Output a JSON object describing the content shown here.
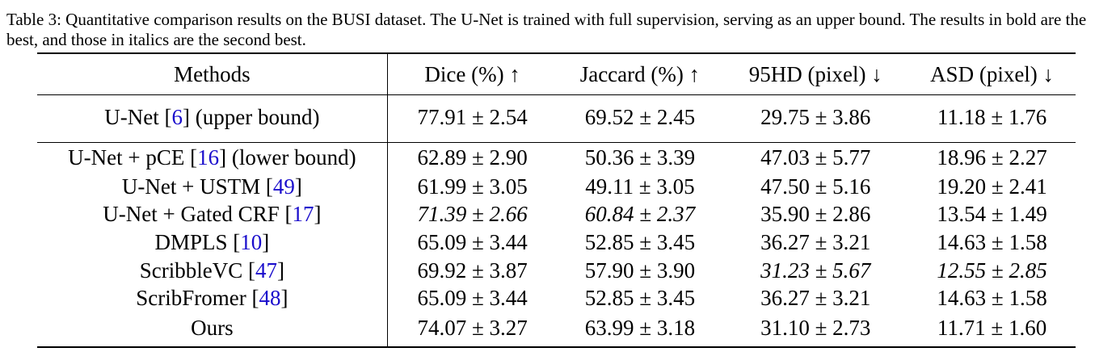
{
  "caption": "Table 3: Quantitative comparison results on the BUSI dataset. The U-Net is trained with full supervision, serving as an upper bound. The results in bold are the best, and those in italics are the second best.",
  "headers": {
    "methods": "Methods",
    "dice": "Dice (%) ↑",
    "jaccard": "Jaccard (%) ↑",
    "hd95": "95HD (pixel) ↓",
    "asd": "ASD (pixel) ↓"
  },
  "upper": {
    "name_pre": "U-Net  [",
    "ref": "6",
    "name_post": "] (upper bound)",
    "dice": "77.91 ± 2.54",
    "jaccard": "69.52 ± 2.45",
    "hd95": "29.75 ± 3.86",
    "asd": "11.18 ± 1.76"
  },
  "rows": [
    {
      "name_pre": "U-Net + pCE [",
      "ref": "16",
      "name_post": "] (lower bound)",
      "dice": "62.89 ± 2.90",
      "jaccard": "50.36 ± 3.39",
      "hd95": "47.03 ± 5.77",
      "asd": "18.96 ± 2.27"
    },
    {
      "name_pre": "U-Net + USTM [",
      "ref": "49",
      "name_post": "]",
      "dice": "61.99 ± 3.05",
      "jaccard": "49.11 ± 3.05",
      "hd95": "47.50 ± 5.16",
      "asd": "19.20 ± 2.41"
    },
    {
      "name_pre": "U-Net + Gated CRF [",
      "ref": "17",
      "name_post": "]",
      "dice": "71.39 ± 2.66",
      "jaccard": "60.84 ± 2.37",
      "hd95": "35.90 ± 2.86",
      "asd": "13.54 ± 1.49"
    },
    {
      "name_pre": "DMPLS [",
      "ref": "10",
      "name_post": "]",
      "dice": "65.09 ± 3.44",
      "jaccard": "52.85 ± 3.45",
      "hd95": "36.27 ± 3.21",
      "asd": "14.63 ± 1.58"
    },
    {
      "name_pre": "ScribbleVC [",
      "ref": "47",
      "name_post": "]",
      "dice": "69.92 ± 3.87",
      "jaccard": "57.90 ± 3.90",
      "hd95": "31.23 ± 5.67",
      "asd": "12.55 ± 2.85"
    },
    {
      "name_pre": "ScribFromer [",
      "ref": "48",
      "name_post": "]",
      "dice": "65.09 ± 3.44",
      "jaccard": "52.85 ± 3.45",
      "hd95": "36.27 ± 3.21",
      "asd": "14.63 ± 1.58"
    },
    {
      "name": "Ours",
      "dice": "74.07 ± 3.27",
      "jaccard": "63.99 ± 3.18",
      "hd95": "31.10 ± 2.73",
      "asd": "11.71 ± 1.60"
    }
  ],
  "colors": {
    "reference_link": "#1a0dcc",
    "text": "#000000"
  }
}
